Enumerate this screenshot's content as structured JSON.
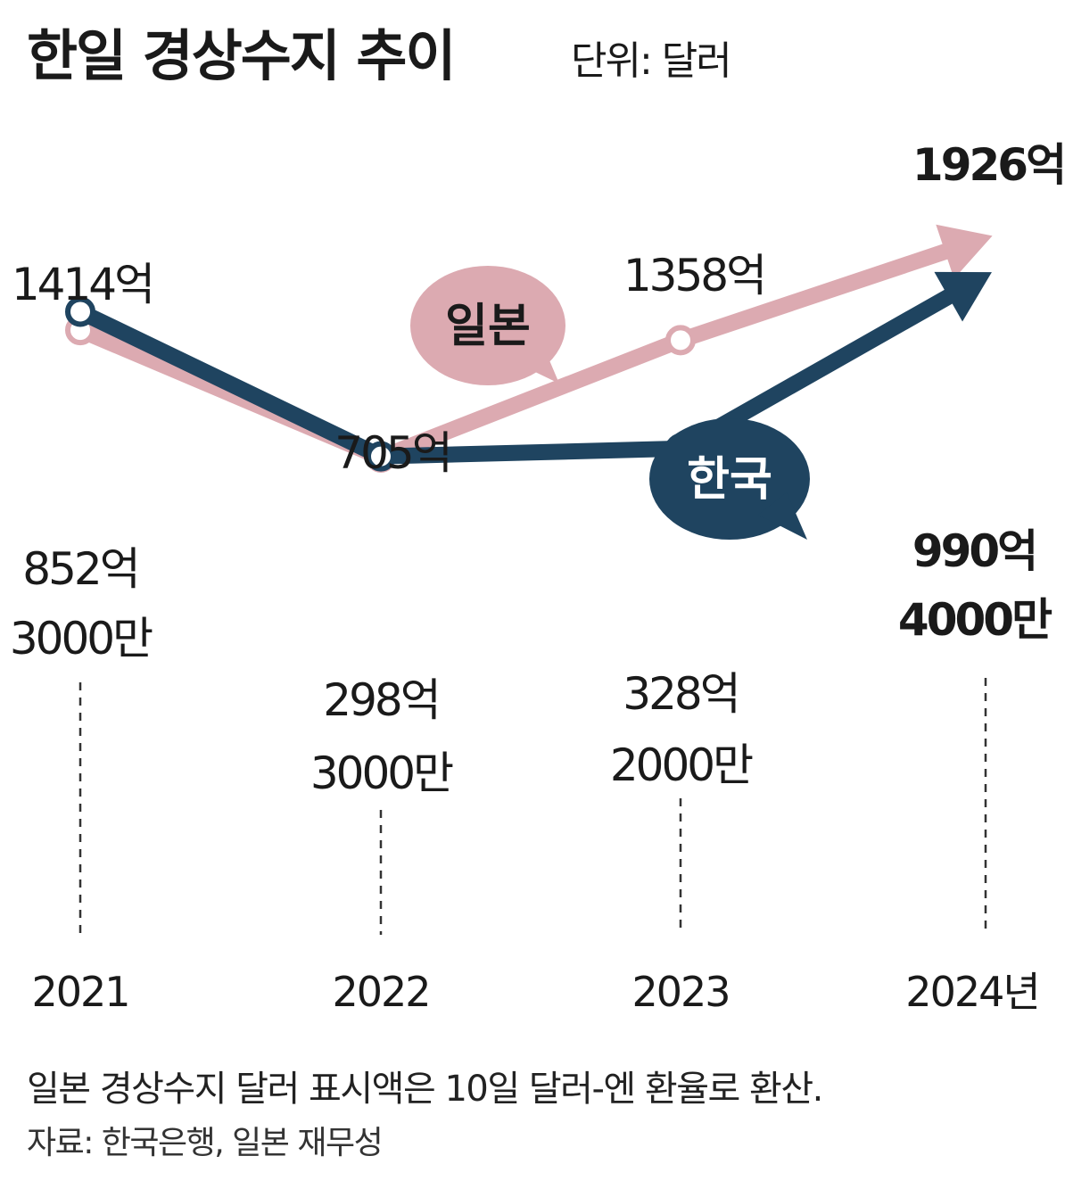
{
  "title": "한일 경상수지 추이",
  "unit": "단위: 달러",
  "chart_data": {
    "type": "line",
    "title": "한일 경상수지 추이",
    "unit": "단위: 달러",
    "categories": [
      "2021",
      "2022",
      "2023",
      "2024년"
    ],
    "value_unit": "억 달러",
    "series": [
      {
        "name": "일본",
        "color": "#dcaab1",
        "values": [
          1414,
          705,
          1358,
          1926
        ],
        "labels": [
          [
            "1414억"
          ],
          [
            "705억"
          ],
          [
            "1358억"
          ],
          [
            "1926억"
          ]
        ]
      },
      {
        "name": "한국",
        "color": "#1f4460",
        "values": [
          852.3,
          298.3,
          328.2,
          990.4
        ],
        "labels": [
          [
            "852억",
            "3000만"
          ],
          [
            "298억",
            "3000만"
          ],
          [
            "328억",
            "2000만"
          ],
          [
            "990억",
            "4000만"
          ]
        ]
      }
    ]
  },
  "note": "일본 경상수지 달러 표시액은 10일 달러-엔 환율로 환산.",
  "source": "자료: 한국은행, 일본 재무성"
}
